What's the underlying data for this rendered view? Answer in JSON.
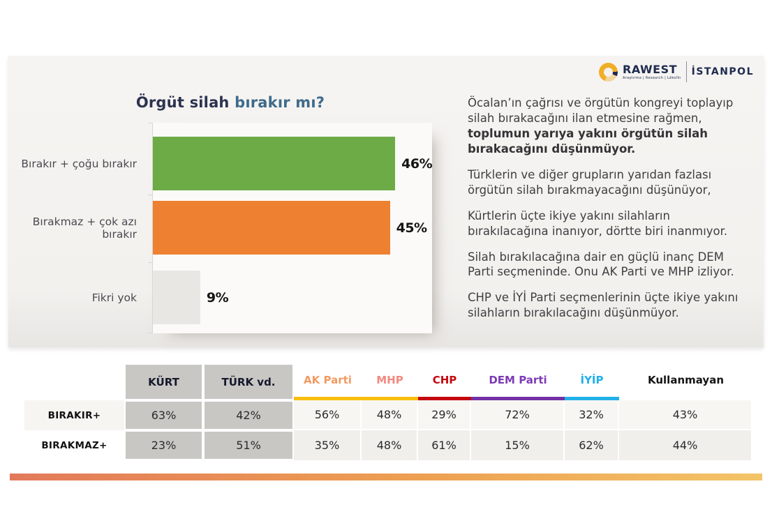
{
  "brand": {
    "rawest": "RAWEST",
    "rawest_subtitle": "Araştırma | Research | Lêkolîn",
    "istanpol": "İSTANPOL",
    "navy": "#1e2b4e",
    "gold": "#f0ae28"
  },
  "chart_data": [
    {
      "type": "bar",
      "orientation": "horizontal",
      "title": "Örgüt silah bırakır mı?",
      "title_part_dark": "Örgüt silah",
      "title_part_accent": "bırakır mı?",
      "title_color_dark": "#2c3350",
      "title_color_accent": "#3e6b8b",
      "categories": [
        "Bırakır + çoğu bırakır",
        "Bırakmaz + çok azı bırakır",
        "Fikri yok"
      ],
      "values": [
        46,
        45,
        9
      ],
      "value_labels": [
        "46%",
        "45%",
        "9%"
      ],
      "colors": [
        "#6dab47",
        "#ee8032",
        "#e8e7e3"
      ],
      "xlim": [
        0,
        53
      ],
      "grid": false,
      "legend": false
    },
    {
      "type": "table",
      "columns": [
        {
          "label": "KÜRT",
          "style": "gray"
        },
        {
          "label": "TÜRK vd.",
          "style": "gray"
        },
        {
          "label": "AK Parti",
          "text_color": "#f29a63",
          "underline": "#f9bd0d"
        },
        {
          "label": "MHP",
          "text_color": "#f28a80",
          "underline": "#f9bd0d"
        },
        {
          "label": "CHP",
          "text_color": "#c4070f",
          "underline": "#c4070f"
        },
        {
          "label": "DEM Parti",
          "text_color": "#7d3ab5",
          "underline": "#7330a6"
        },
        {
          "label": "İYİP",
          "text_color": "#22b0e8",
          "underline": "#22b0e8"
        },
        {
          "label": "Kullanmayan",
          "text_color": "#141414",
          "underline": "none"
        }
      ],
      "rows": [
        {
          "label": "BIRAKIR+",
          "values": [
            "63%",
            "42%",
            "56%",
            "48%",
            "29%",
            "72%",
            "32%",
            "43%"
          ]
        },
        {
          "label": "BIRAKMAZ+",
          "values": [
            "23%",
            "51%",
            "35%",
            "48%",
            "61%",
            "15%",
            "62%",
            "44%"
          ]
        }
      ]
    }
  ],
  "commentary": {
    "p1_normal": "Öcalan’ın çağrısı ve örgütün kongreyi toplayıp silah bırakacağını ilan etmesine rağmen, ",
    "p1_bold": "toplumun yarıya yakını örgütün silah bırakacağını düşünmüyor.",
    "p2": "Türklerin ve diğer grupların yarıdan fazlası örgütün silah bırakmayacağını düşünüyor,",
    "p3": "Kürtlerin üçte ikiye yakını silahların bırakılacağına inanıyor, dörtte biri inanmıyor.",
    "p4": "Silah bırakılacağına dair en güçlü inanç DEM Parti seçmeninde. Onu AK Parti ve MHP izliyor.",
    "p5": "CHP ve İYİ Parti seçmenlerinin üçte ikiye yakını silahların bırakılacağını düşünmüyor."
  },
  "footer": {
    "gradient_from": "#e27a5a",
    "gradient_to": "#f4c468"
  }
}
